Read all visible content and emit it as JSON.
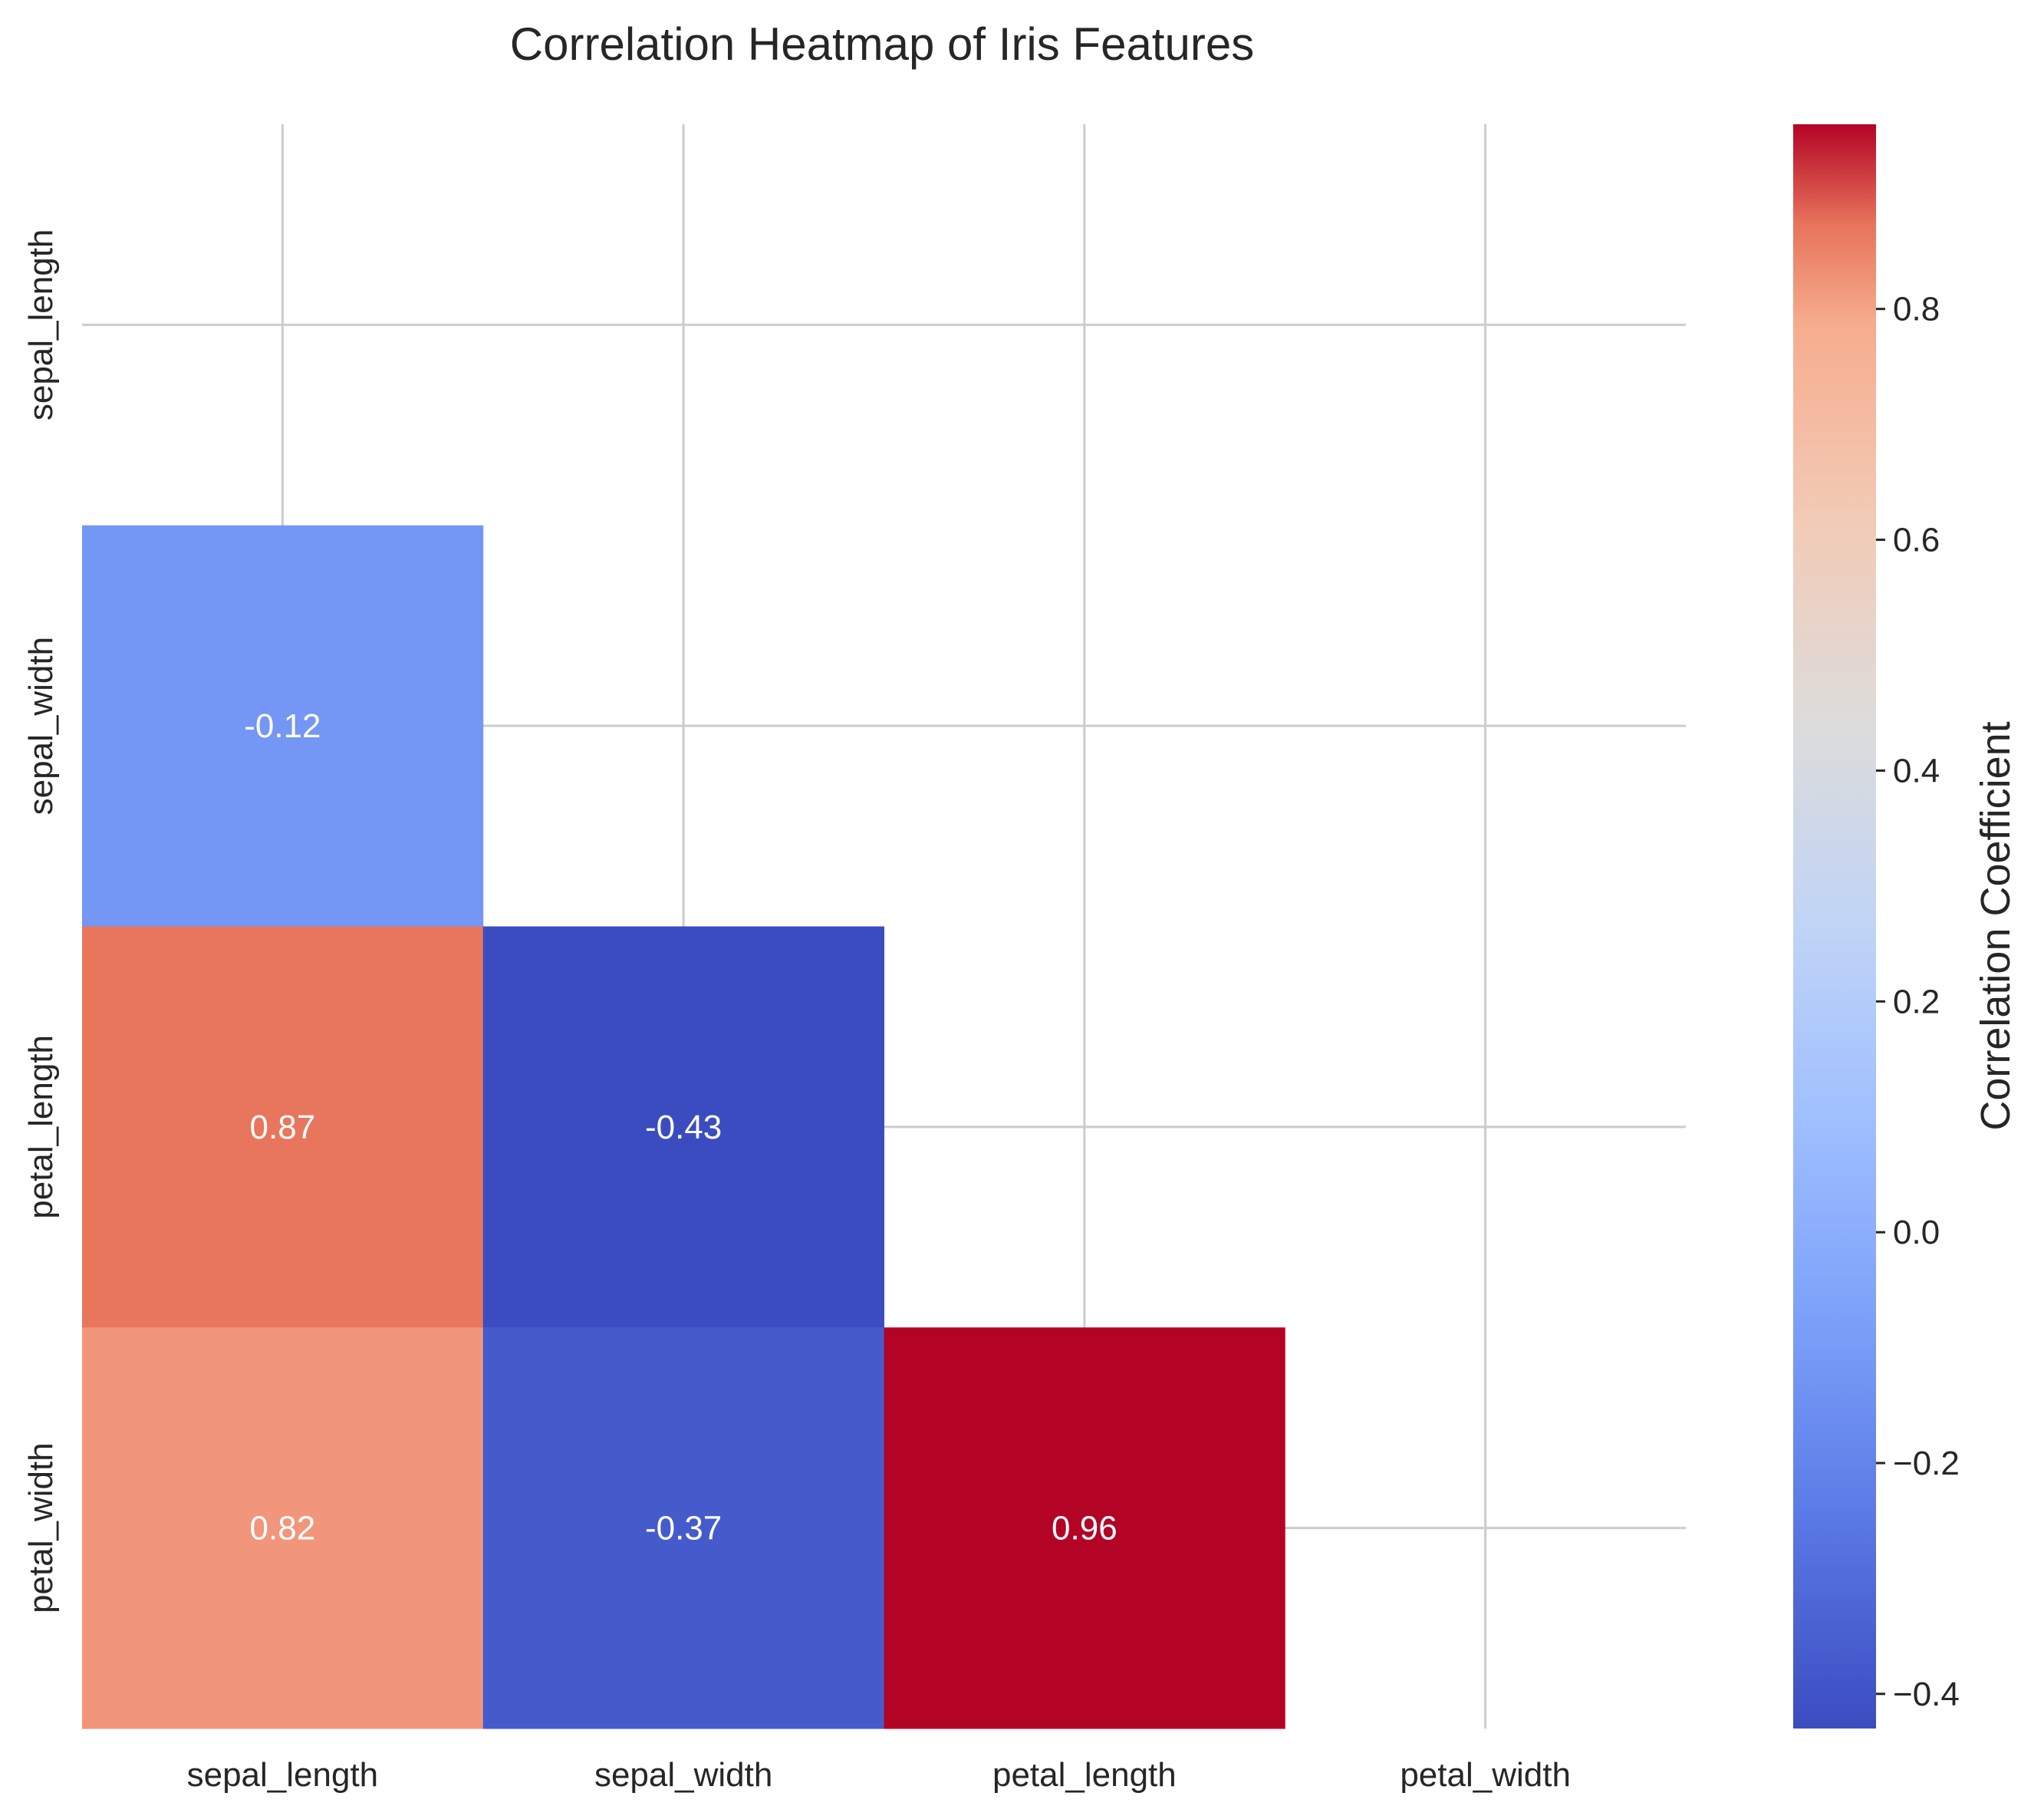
{
  "chart_data": {
    "type": "heatmap",
    "title": "Correlation Heatmap of Iris Features",
    "x_categories": [
      "sepal_length",
      "sepal_width",
      "petal_length",
      "petal_width"
    ],
    "y_categories": [
      "sepal_length",
      "sepal_width",
      "petal_length",
      "petal_width"
    ],
    "mask": "upper triangle including diagonal",
    "cells": [
      {
        "row": 1,
        "col": 0,
        "value": -0.12,
        "label": "-0.12"
      },
      {
        "row": 2,
        "col": 0,
        "value": 0.87,
        "label": "0.87"
      },
      {
        "row": 2,
        "col": 1,
        "value": -0.43,
        "label": "-0.43"
      },
      {
        "row": 3,
        "col": 0,
        "value": 0.82,
        "label": "0.82"
      },
      {
        "row": 3,
        "col": 1,
        "value": -0.37,
        "label": "-0.37"
      },
      {
        "row": 3,
        "col": 2,
        "value": 0.96,
        "label": "0.96"
      }
    ],
    "colormap": "coolwarm",
    "colorbar": {
      "label": "Correlation Coefficient",
      "range": [
        -0.43,
        0.96
      ],
      "ticks": [
        -0.4,
        -0.2,
        0.0,
        0.2,
        0.4,
        0.6,
        0.8
      ],
      "tick_labels": [
        "−0.4",
        "−0.2",
        "0.0",
        "0.2",
        "0.4",
        "0.6",
        "0.8"
      ]
    },
    "grid": true
  }
}
